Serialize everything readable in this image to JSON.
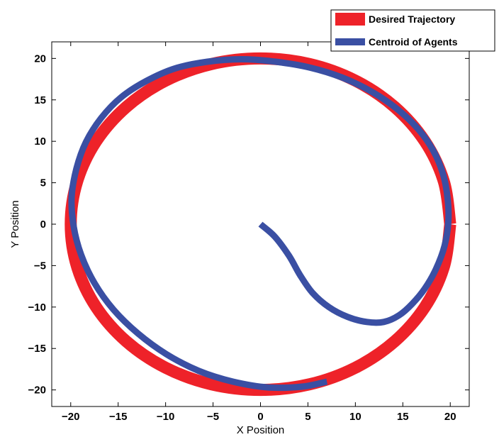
{
  "chart_data": {
    "type": "line",
    "title": "",
    "xlabel": "X Position",
    "ylabel": "Y Position",
    "xlim": [
      -22,
      22
    ],
    "ylim": [
      -22,
      22
    ],
    "xticks": [
      -20,
      -15,
      -10,
      -5,
      0,
      5,
      10,
      15,
      20
    ],
    "yticks": [
      -20,
      -15,
      -10,
      -5,
      0,
      5,
      10,
      15,
      20
    ],
    "xtick_labels": [
      "−20",
      "−15",
      "−10",
      "−5",
      "0",
      "5",
      "10",
      "15",
      "20"
    ],
    "ytick_labels": [
      "−20",
      "−15",
      "−10",
      "−5",
      "0",
      "5",
      "10",
      "15",
      "20"
    ],
    "grid": false,
    "legend_position": "top-right",
    "series": [
      {
        "name": "Desired Trajectory",
        "color": "#ee2229",
        "x": [
          20.0,
          19.32,
          17.32,
          14.14,
          10.0,
          5.18,
          0.0,
          -5.18,
          -10.0,
          -14.14,
          -17.32,
          -19.32,
          -20.0,
          -19.32,
          -17.32,
          -14.14,
          -10.0,
          -5.18,
          0.0,
          5.18,
          10.0,
          14.14,
          17.32,
          19.32,
          20.0
        ],
        "y": [
          0.0,
          5.18,
          10.0,
          14.14,
          17.32,
          19.32,
          20.0,
          19.32,
          17.32,
          14.14,
          10.0,
          5.18,
          0.0,
          -5.18,
          -10.0,
          -14.14,
          -17.32,
          -19.32,
          -20.0,
          -19.32,
          -17.32,
          -14.14,
          -10.0,
          -5.18,
          0.0
        ]
      },
      {
        "name": "Centroid of Agents",
        "color": "#3a4fa3",
        "x": [
          0.0,
          1.5,
          3.0,
          4.2,
          5.5,
          7.2,
          9.2,
          11.2,
          13.0,
          14.6,
          16.0,
          17.3,
          18.5,
          19.4,
          19.8,
          19.7,
          19.2,
          18.2,
          16.6,
          14.4,
          11.7,
          8.6,
          5.2,
          1.6,
          -2.0,
          -5.6,
          -9.0,
          -12.0,
          -14.7,
          -16.8,
          -18.4,
          -19.4,
          -19.9,
          -19.7,
          -18.9,
          -17.5,
          -15.5,
          -12.9,
          -9.9,
          -6.5,
          -2.9,
          0.8,
          4.4,
          7.0
        ],
        "y": [
          0.0,
          -1.5,
          -3.8,
          -6.2,
          -8.3,
          -10.0,
          -11.2,
          -11.8,
          -11.8,
          -11.0,
          -9.6,
          -7.8,
          -5.4,
          -2.6,
          0.3,
          3.3,
          6.2,
          8.9,
          11.5,
          13.9,
          16.0,
          17.7,
          18.9,
          19.6,
          19.9,
          19.6,
          18.8,
          17.3,
          15.3,
          12.8,
          9.9,
          6.7,
          3.3,
          -0.2,
          -3.7,
          -7.1,
          -10.3,
          -13.2,
          -15.7,
          -17.7,
          -19.0,
          -19.7,
          -19.6,
          -19.0
        ]
      }
    ]
  }
}
